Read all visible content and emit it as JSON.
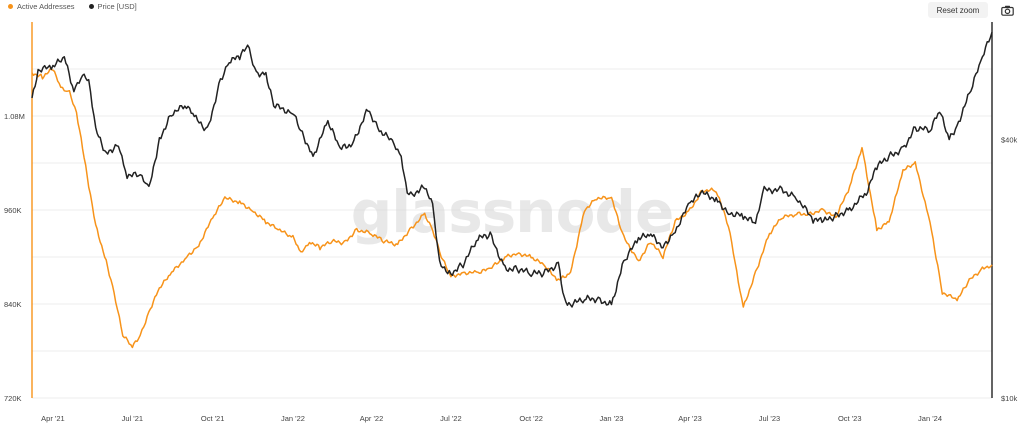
{
  "legend": [
    {
      "label": "Active Addresses",
      "color": "#f7931a"
    },
    {
      "label": "Price [USD]",
      "color": "#222222"
    }
  ],
  "toolbar": {
    "reset_label": "Reset zoom",
    "camera_icon": "camera-icon"
  },
  "watermark": "glassnode",
  "chart_data": {
    "type": "line",
    "title": "",
    "xlabel": "",
    "ylabel": "",
    "x_range": [
      "2021-03-08",
      "2024-03-12"
    ],
    "x_ticks": [
      "Apr '21",
      "Jul '21",
      "Oct '21",
      "Jan '22",
      "Apr '22",
      "Jul '22",
      "Oct '22",
      "Jan '23",
      "Apr '23",
      "Jul '23",
      "Oct '23",
      "Jan '24"
    ],
    "left_axis": {
      "ticks": [
        "720K",
        "840K",
        "960K",
        "1.08M"
      ],
      "values": [
        720000,
        840000,
        960000,
        1080000
      ],
      "ylim": [
        720000,
        1200000
      ]
    },
    "right_axis": {
      "ticks": [
        "$10k",
        "$40k"
      ],
      "values": [
        10000,
        40000
      ],
      "scale": "log",
      "ylim": [
        10000,
        75000
      ]
    },
    "grid": true,
    "legend_position": "top-left",
    "series": [
      {
        "name": "Active Addresses",
        "color": "#f7931a",
        "axis": "left",
        "x": [
          "2021-03-08",
          "2021-03-20",
          "2021-04-01",
          "2021-04-10",
          "2021-04-20",
          "2021-04-28",
          "2021-05-05",
          "2021-05-12",
          "2021-05-20",
          "2021-06-01",
          "2021-06-10",
          "2021-06-20",
          "2021-07-01",
          "2021-07-10",
          "2021-07-20",
          "2021-08-01",
          "2021-08-15",
          "2021-09-01",
          "2021-09-15",
          "2021-10-01",
          "2021-10-15",
          "2021-11-01",
          "2021-11-15",
          "2021-12-01",
          "2021-12-15",
          "2022-01-01",
          "2022-01-10",
          "2022-01-20",
          "2022-02-01",
          "2022-02-15",
          "2022-03-01",
          "2022-03-15",
          "2022-04-01",
          "2022-04-15",
          "2022-05-01",
          "2022-05-15",
          "2022-06-01",
          "2022-06-10",
          "2022-06-20",
          "2022-07-01",
          "2022-07-15",
          "2022-08-01",
          "2022-08-15",
          "2022-09-01",
          "2022-09-15",
          "2022-10-01",
          "2022-10-15",
          "2022-11-01",
          "2022-11-15",
          "2022-12-01",
          "2022-12-15",
          "2023-01-01",
          "2023-01-15",
          "2023-02-01",
          "2023-02-15",
          "2023-03-01",
          "2023-03-15",
          "2023-04-01",
          "2023-04-15",
          "2023-05-01",
          "2023-05-15",
          "2023-06-01",
          "2023-06-15",
          "2023-07-01",
          "2023-07-15",
          "2023-08-01",
          "2023-08-15",
          "2023-09-01",
          "2023-09-15",
          "2023-10-01",
          "2023-10-15",
          "2023-11-01",
          "2023-11-15",
          "2023-12-01",
          "2023-12-15",
          "2024-01-01",
          "2024-01-15",
          "2024-02-01",
          "2024-02-15",
          "2024-03-01",
          "2024-03-12"
        ],
        "values": [
          1135000,
          1130000,
          1140000,
          1115000,
          1110000,
          1085000,
          1040000,
          990000,
          940000,
          895000,
          855000,
          800000,
          785000,
          800000,
          830000,
          860000,
          880000,
          900000,
          915000,
          950000,
          975000,
          970000,
          960000,
          945000,
          935000,
          925000,
          905000,
          920000,
          912000,
          920000,
          918000,
          935000,
          930000,
          920000,
          916000,
          935000,
          955000,
          935000,
          900000,
          875000,
          880000,
          880000,
          885000,
          900000,
          905000,
          900000,
          890000,
          870000,
          880000,
          960000,
          975000,
          975000,
          925000,
          895000,
          920000,
          900000,
          945000,
          960000,
          985000,
          985000,
          940000,
          835000,
          880000,
          930000,
          950000,
          955000,
          955000,
          960000,
          950000,
          990000,
          1040000,
          935000,
          945000,
          1010000,
          1020000,
          945000,
          855000,
          845000,
          870000,
          885000,
          890000
        ]
      },
      {
        "name": "Price [USD]",
        "color": "#222222",
        "axis": "right",
        "x": [
          "2021-03-08",
          "2021-03-15",
          "2021-04-01",
          "2021-04-14",
          "2021-04-25",
          "2021-05-05",
          "2021-05-12",
          "2021-05-20",
          "2021-06-01",
          "2021-06-15",
          "2021-06-25",
          "2021-07-10",
          "2021-07-20",
          "2021-08-01",
          "2021-08-15",
          "2021-09-01",
          "2021-09-10",
          "2021-09-25",
          "2021-10-10",
          "2021-10-20",
          "2021-11-01",
          "2021-11-10",
          "2021-11-20",
          "2021-12-01",
          "2021-12-10",
          "2022-01-01",
          "2022-01-10",
          "2022-01-24",
          "2022-02-10",
          "2022-02-24",
          "2022-03-10",
          "2022-03-28",
          "2022-04-10",
          "2022-04-25",
          "2022-05-05",
          "2022-05-12",
          "2022-05-20",
          "2022-06-01",
          "2022-06-10",
          "2022-06-18",
          "2022-07-01",
          "2022-07-15",
          "2022-08-01",
          "2022-08-15",
          "2022-09-01",
          "2022-09-15",
          "2022-10-01",
          "2022-10-15",
          "2022-11-01",
          "2022-11-08",
          "2022-11-15",
          "2022-12-01",
          "2022-12-15",
          "2023-01-01",
          "2023-01-15",
          "2023-02-01",
          "2023-02-15",
          "2023-03-01",
          "2023-03-15",
          "2023-04-01",
          "2023-04-15",
          "2023-05-01",
          "2023-05-15",
          "2023-06-01",
          "2023-06-15",
          "2023-06-25",
          "2023-07-15",
          "2023-08-01",
          "2023-08-20",
          "2023-09-01",
          "2023-09-15",
          "2023-10-01",
          "2023-10-20",
          "2023-11-01",
          "2023-11-15",
          "2023-12-01",
          "2023-12-15",
          "2024-01-01",
          "2024-01-12",
          "2024-01-23",
          "2024-02-01",
          "2024-02-15",
          "2024-03-01",
          "2024-03-12"
        ],
        "values": [
          50000,
          58000,
          59000,
          62000,
          52000,
          57000,
          55000,
          42000,
          37000,
          39000,
          33000,
          33000,
          30500,
          40000,
          46000,
          48000,
          45000,
          42000,
          55000,
          61000,
          62000,
          66000,
          57000,
          57000,
          48000,
          46000,
          42000,
          36500,
          44000,
          38000,
          39000,
          47000,
          42000,
          39500,
          36000,
          30000,
          30000,
          31000,
          28000,
          20500,
          19500,
          20500,
          23500,
          24000,
          20000,
          20000,
          19500,
          19500,
          20500,
          17000,
          16500,
          17000,
          17000,
          16500,
          20800,
          23500,
          24000,
          22500,
          24500,
          28500,
          30000,
          29000,
          27000,
          26500,
          25500,
          30500,
          30500,
          29300,
          26000,
          25800,
          26500,
          27500,
          30000,
          34500,
          36500,
          38000,
          42500,
          42000,
          46500,
          40000,
          43000,
          51000,
          62000,
          71000
        ]
      }
    ]
  }
}
